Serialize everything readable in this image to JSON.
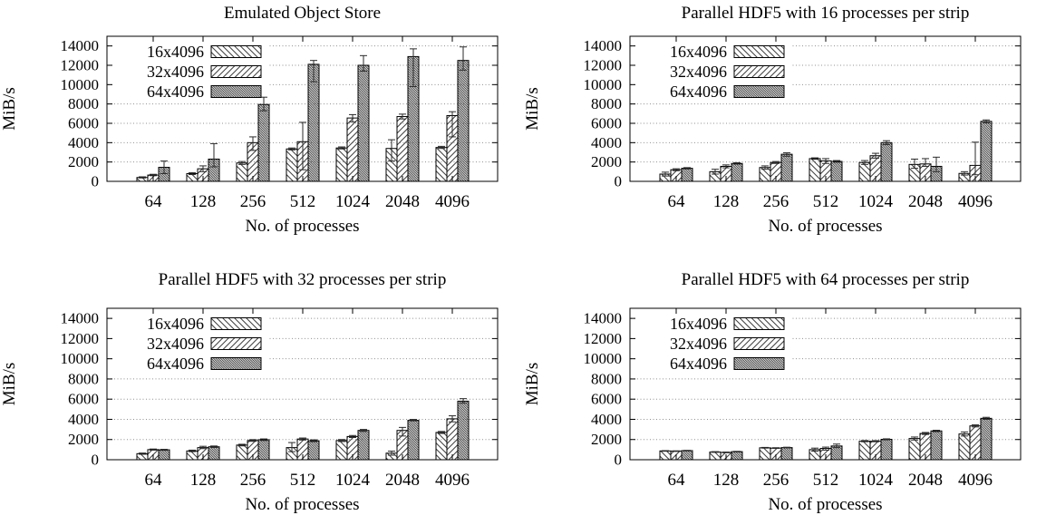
{
  "figure": {
    "background": "#ffffff",
    "text_color": "#000000",
    "bar_edge_color": "#000000",
    "hatch_color": "#3f3f3f",
    "grid_color": "#909090",
    "error_bar_color": "#2a2a2a"
  },
  "chart_data": [
    {
      "type": "bar",
      "title": "Emulated Object Store",
      "xlabel": "No. of processes",
      "ylabel": "MiB/s",
      "categories": [
        "64",
        "128",
        "256",
        "512",
        "1024",
        "2048",
        "4096"
      ],
      "yticks": [
        0,
        2000,
        4000,
        6000,
        8000,
        10000,
        12000,
        14000
      ],
      "ylim": [
        0,
        15000
      ],
      "grid": "dotted-horizontal",
      "legend_position": "top-left-inside",
      "series": [
        {
          "name": "16x4096",
          "hatch": "diagonal-backslash-sparse",
          "values": [
            400,
            800,
            1900,
            3350,
            3450,
            3400,
            3500
          ],
          "error_bars": [
            [
              350,
              470
            ],
            [
              700,
              900
            ],
            [
              1750,
              2050
            ],
            [
              3250,
              3450
            ],
            [
              3350,
              3560
            ],
            [
              2100,
              4300
            ],
            [
              3400,
              3620
            ]
          ]
        },
        {
          "name": "32x4096",
          "hatch": "diagonal-slash-sparse",
          "values": [
            650,
            1300,
            4000,
            4100,
            6550,
            6700,
            6800
          ],
          "error_bars": [
            [
              580,
              730
            ],
            [
              1000,
              1600
            ],
            [
              3200,
              4600
            ],
            [
              1200,
              6100
            ],
            [
              6150,
              6900
            ],
            [
              6450,
              6950
            ],
            [
              4600,
              7200
            ]
          ]
        },
        {
          "name": "64x4096",
          "hatch": "diagonal-backslash-dense",
          "values": [
            1450,
            2300,
            7950,
            12100,
            12000,
            12900,
            12500
          ],
          "error_bars": [
            [
              800,
              2100
            ],
            [
              1500,
              3900
            ],
            [
              7300,
              8700
            ],
            [
              10300,
              12500
            ],
            [
              11400,
              13000
            ],
            [
              9800,
              13700
            ],
            [
              11500,
              13900
            ]
          ]
        }
      ]
    },
    {
      "type": "bar",
      "title": "Parallel HDF5 with 16 processes per strip",
      "xlabel": "No. of processes",
      "ylabel": "MiB/s",
      "categories": [
        "64",
        "128",
        "256",
        "512",
        "1024",
        "2048",
        "4096"
      ],
      "yticks": [
        0,
        2000,
        4000,
        6000,
        8000,
        10000,
        12000,
        14000
      ],
      "ylim": [
        0,
        15000
      ],
      "grid": "dotted-horizontal",
      "legend_position": "top-left-inside",
      "series": [
        {
          "name": "16x4096",
          "hatch": "diagonal-backslash-sparse",
          "values": [
            750,
            1000,
            1430,
            2350,
            1950,
            1750,
            820
          ],
          "error_bars": [
            [
              550,
              950
            ],
            [
              750,
              1250
            ],
            [
              1250,
              1600
            ],
            [
              2280,
              2430
            ],
            [
              1750,
              2150
            ],
            [
              1350,
              2300
            ],
            [
              650,
              1000
            ]
          ]
        },
        {
          "name": "32x4096",
          "hatch": "diagonal-slash-sparse",
          "values": [
            1200,
            1550,
            1950,
            2120,
            2650,
            1800,
            1650
          ],
          "error_bars": [
            [
              1100,
              1300
            ],
            [
              1400,
              1700
            ],
            [
              1850,
              2050
            ],
            [
              1850,
              2350
            ],
            [
              2400,
              2900
            ],
            [
              1550,
              2350
            ],
            [
              680,
              4050
            ]
          ]
        },
        {
          "name": "64x4096",
          "hatch": "diagonal-backslash-dense",
          "values": [
            1350,
            1850,
            2800,
            2060,
            4000,
            1550,
            6200
          ],
          "error_bars": [
            [
              1280,
              1420
            ],
            [
              1780,
              1930
            ],
            [
              2600,
              2950
            ],
            [
              1980,
              2150
            ],
            [
              3800,
              4200
            ],
            [
              1000,
              2500
            ],
            [
              6050,
              6350
            ]
          ]
        }
      ]
    },
    {
      "type": "bar",
      "title": "Parallel HDF5 with 32 processes per strip",
      "xlabel": "No. of processes",
      "ylabel": "MiB/s",
      "categories": [
        "64",
        "128",
        "256",
        "512",
        "1024",
        "2048",
        "4096"
      ],
      "yticks": [
        0,
        2000,
        4000,
        6000,
        8000,
        10000,
        12000,
        14000
      ],
      "ylim": [
        0,
        15000
      ],
      "grid": "dotted-horizontal",
      "legend_position": "top-left-inside",
      "series": [
        {
          "name": "16x4096",
          "hatch": "diagonal-backslash-sparse",
          "values": [
            600,
            870,
            1450,
            1200,
            1900,
            650,
            2700
          ],
          "error_bars": [
            [
              540,
              660
            ],
            [
              800,
              950
            ],
            [
              1370,
              1530
            ],
            [
              800,
              1700
            ],
            [
              1800,
              2000
            ],
            [
              450,
              850
            ],
            [
              2600,
              2800
            ]
          ]
        },
        {
          "name": "32x4096",
          "hatch": "diagonal-slash-sparse",
          "values": [
            1000,
            1200,
            1900,
            2050,
            2300,
            2900,
            4050
          ],
          "error_bars": [
            [
              950,
              1060
            ],
            [
              1100,
              1330
            ],
            [
              1820,
              1990
            ],
            [
              1950,
              2150
            ],
            [
              2200,
              2400
            ],
            [
              2350,
              3200
            ],
            [
              3750,
              4350
            ]
          ]
        },
        {
          "name": "64x4096",
          "hatch": "diagonal-backslash-dense",
          "values": [
            980,
            1280,
            1980,
            1880,
            2900,
            3900,
            5800
          ],
          "error_bars": [
            [
              930,
              1030
            ],
            [
              1210,
              1360
            ],
            [
              1900,
              2060
            ],
            [
              1790,
              1970
            ],
            [
              2800,
              3000
            ],
            [
              3850,
              3990
            ],
            [
              5600,
              6050
            ]
          ]
        }
      ]
    },
    {
      "type": "bar",
      "title": "Parallel HDF5 with 64 processes per strip",
      "xlabel": "No. of processes",
      "ylabel": "MiB/s",
      "categories": [
        "64",
        "128",
        "256",
        "512",
        "1024",
        "2048",
        "4096"
      ],
      "yticks": [
        0,
        2000,
        4000,
        6000,
        8000,
        10000,
        12000,
        14000
      ],
      "ylim": [
        0,
        15000
      ],
      "grid": "dotted-horizontal",
      "legend_position": "top-left-inside",
      "series": [
        {
          "name": "16x4096",
          "hatch": "diagonal-backslash-sparse",
          "values": [
            870,
            760,
            1180,
            1000,
            1830,
            2100,
            2550
          ],
          "error_bars": [
            [
              840,
              900
            ],
            [
              730,
              800
            ],
            [
              1150,
              1220
            ],
            [
              850,
              1150
            ],
            [
              1780,
              1900
            ],
            [
              1950,
              2250
            ],
            [
              2350,
              2750
            ]
          ]
        },
        {
          "name": "32x4096",
          "hatch": "diagonal-slash-sparse",
          "values": [
            850,
            720,
            1150,
            1120,
            1830,
            2600,
            3350
          ],
          "error_bars": [
            [
              820,
              880
            ],
            [
              690,
              760
            ],
            [
              1120,
              1190
            ],
            [
              950,
              1250
            ],
            [
              1780,
              1890
            ],
            [
              2500,
              2700
            ],
            [
              3250,
              3450
            ]
          ]
        },
        {
          "name": "64x4096",
          "hatch": "diagonal-backslash-dense",
          "values": [
            900,
            800,
            1200,
            1360,
            2020,
            2850,
            4100
          ],
          "error_bars": [
            [
              870,
              930
            ],
            [
              770,
              830
            ],
            [
              1170,
              1240
            ],
            [
              1200,
              1550
            ],
            [
              1970,
              2070
            ],
            [
              2780,
              2920
            ],
            [
              4000,
              4200
            ]
          ]
        }
      ]
    }
  ]
}
